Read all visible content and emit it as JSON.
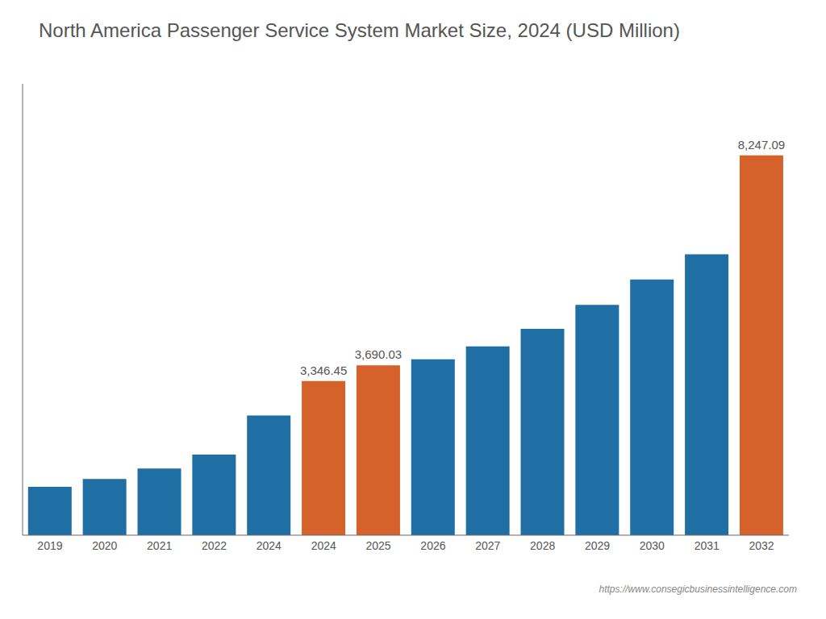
{
  "chart_data": {
    "type": "bar",
    "title": "North America Passenger Service System Market Size, 2024 (USD Million)",
    "categories": [
      "2019",
      "2020",
      "2021",
      "2022",
      "2024",
      "2024",
      "2025",
      "2026",
      "2027",
      "2028",
      "2029",
      "2030",
      "2031",
      "2032"
    ],
    "values": [
      1050,
      1220,
      1450,
      1750,
      2600,
      3346.45,
      3690.03,
      3820,
      4100,
      4480,
      5000,
      5550,
      6100,
      8247.09
    ],
    "value_labels": [
      null,
      null,
      null,
      null,
      null,
      "3,346.45",
      "3,690.03",
      null,
      null,
      null,
      null,
      null,
      null,
      "8,247.09"
    ],
    "colors": [
      "#1f6fa5",
      "#1f6fa5",
      "#1f6fa5",
      "#1f6fa5",
      "#1f6fa5",
      "#d4622a",
      "#d4622a",
      "#1f6fa5",
      "#1f6fa5",
      "#1f6fa5",
      "#1f6fa5",
      "#1f6fa5",
      "#1f6fa5",
      "#d4622a"
    ],
    "ylim": [
      0,
      9800
    ],
    "tick_labels": "x",
    "grid": false,
    "watermark": "https://www.consegicbusinessintelligence.com"
  }
}
